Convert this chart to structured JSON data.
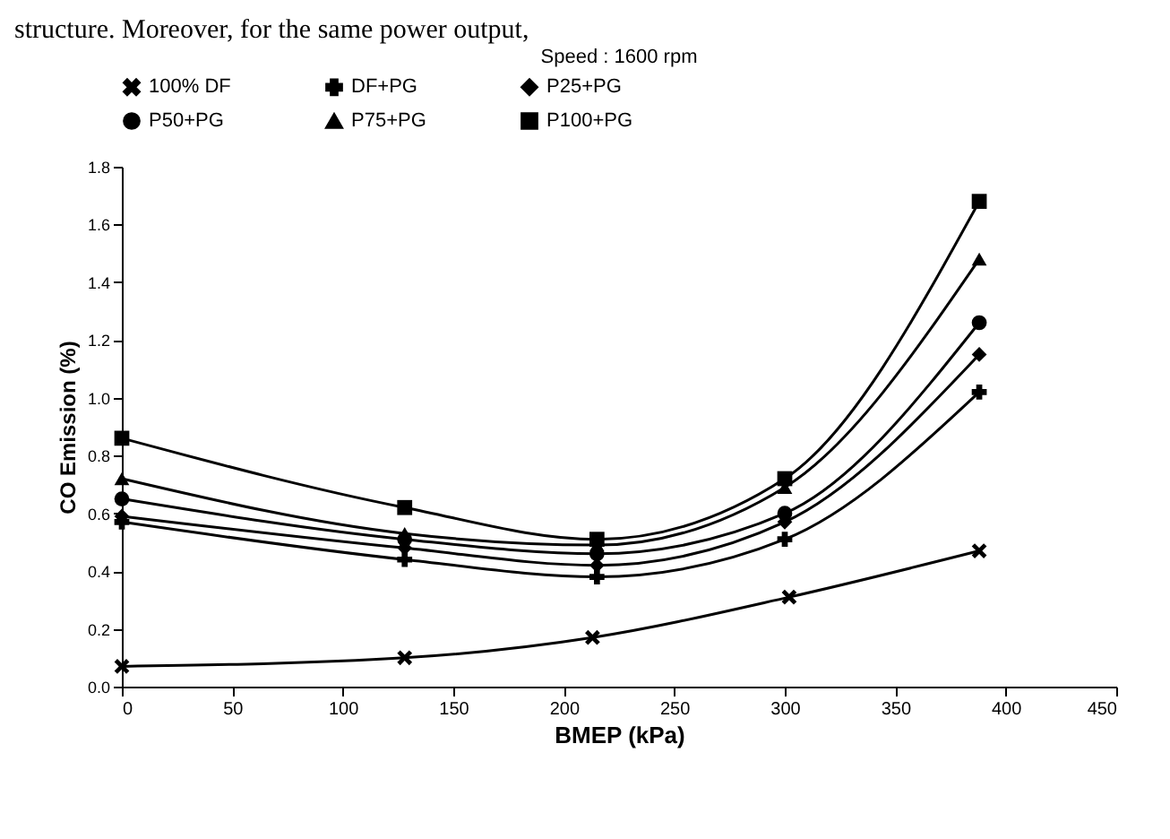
{
  "chart_data": {
    "type": "line",
    "title": "Speed : 1600 rpm",
    "xlabel": "BMEP (kPa)",
    "ylabel": "CO Emission (%)",
    "annotations": [
      "structure. Moreover, for the same power output,"
    ],
    "xlim": [
      0,
      450
    ],
    "xticks": [
      0,
      50,
      100,
      150,
      200,
      250,
      300,
      350,
      400,
      450
    ],
    "ylim": [
      0,
      1.8
    ],
    "yticks": [
      {
        "value": 0,
        "label": "0.0"
      },
      {
        "value": 0.2,
        "label": "0.2"
      },
      {
        "value": 0.4,
        "label": "0.4"
      },
      {
        "value": 0.6,
        "label": "0.6"
      },
      {
        "value": 0.8,
        "label": "0.8"
      },
      {
        "value": 1.0,
        "label": "1.0"
      },
      {
        "value": 1.2,
        "label": "1.2"
      },
      {
        "value": 1.4,
        "label": "1.4"
      },
      {
        "value": 1.6,
        "label": "1.6"
      },
      {
        "value": 1.8,
        "label": "1.8"
      }
    ],
    "grid": false,
    "legend": "top",
    "line_style": "solid",
    "series": [
      {
        "name": "100% DF",
        "color": "#000000",
        "marker": "x",
        "x": [
          0,
          128,
          213,
          302,
          388
        ],
        "values": [
          0.07,
          0.1,
          0.17,
          0.31,
          0.47
        ]
      },
      {
        "name": "DF+PG",
        "color": "#000000",
        "marker": "cross",
        "x": [
          0,
          128,
          215,
          300,
          388
        ],
        "values": [
          0.57,
          0.44,
          0.38,
          0.51,
          1.02
        ]
      },
      {
        "name": "P25+PG",
        "color": "#000000",
        "marker": "diamond",
        "x": [
          0,
          128,
          215,
          300,
          388
        ],
        "values": [
          0.59,
          0.48,
          0.42,
          0.57,
          1.15
        ]
      },
      {
        "name": "P50+PG",
        "color": "#000000",
        "marker": "circle",
        "x": [
          0,
          128,
          215,
          300,
          388
        ],
        "values": [
          0.65,
          0.51,
          0.46,
          0.6,
          1.26
        ]
      },
      {
        "name": "P75+PG",
        "color": "#000000",
        "marker": "triangle",
        "x": [
          0,
          128,
          215,
          300,
          388
        ],
        "values": [
          0.72,
          0.53,
          0.49,
          0.69,
          1.48
        ]
      },
      {
        "name": "P100+PG",
        "color": "#000000",
        "marker": "square",
        "x": [
          0,
          128,
          215,
          300,
          388
        ],
        "values": [
          0.86,
          0.62,
          0.51,
          0.72,
          1.68
        ]
      }
    ]
  }
}
